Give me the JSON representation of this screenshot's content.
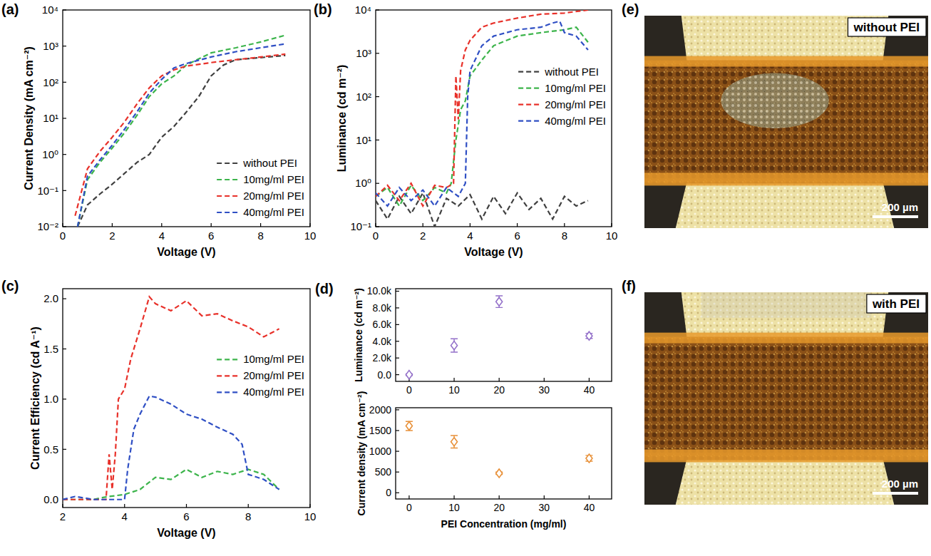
{
  "chart_data": [
    {
      "panel_label": "(a)",
      "type": "line",
      "x_label": "Voltage (V)",
      "y_label": "Current Density (mA cm⁻²)",
      "log": "y",
      "legend": "lower right",
      "xlim": [
        0,
        10
      ],
      "xticks": [
        0,
        2,
        4,
        6,
        8,
        10
      ],
      "ylim": [
        0.01,
        10000
      ],
      "yticks": [
        {
          "value": 0.01,
          "label": "10⁻²"
        },
        {
          "value": 0.1,
          "label": "10⁻¹"
        },
        {
          "value": 1,
          "label": "10⁰"
        },
        {
          "value": 10,
          "label": "10¹"
        },
        {
          "value": 100,
          "label": "10²"
        },
        {
          "value": 1000,
          "label": "10³"
        },
        {
          "value": 10000,
          "label": "10⁴"
        }
      ],
      "series": [
        {
          "name": "without PEI",
          "color": "#404040",
          "line_style": "dashed",
          "x": [
            0.6,
            1,
            1.5,
            2,
            2.5,
            3,
            3.5,
            4,
            4.5,
            5,
            5.5,
            6,
            6.5,
            7,
            8,
            9
          ],
          "values": [
            0.01,
            0.04,
            0.08,
            0.15,
            0.3,
            0.6,
            1,
            3,
            6,
            15,
            40,
            150,
            300,
            420,
            480,
            550
          ]
        },
        {
          "name": "10mg/ml PEI",
          "color": "#3cb44b",
          "line_style": "dashed",
          "x": [
            0.6,
            1,
            1.5,
            2,
            2.5,
            3,
            3.5,
            4,
            4.5,
            5,
            6,
            7,
            8,
            9
          ],
          "values": [
            0.01,
            0.2,
            0.6,
            1.5,
            4,
            12,
            40,
            90,
            150,
            300,
            650,
            900,
            1300,
            2000
          ]
        },
        {
          "name": "20mg/ml PEI",
          "color": "#e8312a",
          "line_style": "dashed",
          "x": [
            0.5,
            1,
            1.5,
            2,
            2.5,
            3,
            3.5,
            4,
            4.5,
            5,
            6,
            7,
            8,
            9
          ],
          "values": [
            0.02,
            0.4,
            1.2,
            3,
            8,
            25,
            70,
            150,
            220,
            280,
            350,
            420,
            500,
            600
          ]
        },
        {
          "name": "40mg/ml PEI",
          "color": "#2f4fc4",
          "line_style": "dashed",
          "x": [
            0.6,
            1,
            1.5,
            2,
            2.5,
            3,
            3.5,
            4,
            4.5,
            5,
            6,
            7,
            8,
            9
          ],
          "values": [
            0.01,
            0.25,
            0.7,
            1.8,
            5,
            15,
            50,
            120,
            250,
            330,
            500,
            700,
            900,
            1150
          ]
        }
      ]
    },
    {
      "panel_label": "(b)",
      "type": "line",
      "x_label": "Voltage (V)",
      "y_label": "Luminance (cd m⁻²)",
      "log": "y",
      "legend": "right",
      "xlim": [
        0,
        10
      ],
      "xticks": [
        0,
        2,
        4,
        6,
        8,
        10
      ],
      "ylim": [
        0.1,
        10000
      ],
      "yticks": [
        {
          "value": 0.1,
          "label": "10⁻¹"
        },
        {
          "value": 1,
          "label": "10⁰"
        },
        {
          "value": 10,
          "label": "10¹"
        },
        {
          "value": 100,
          "label": "10²"
        },
        {
          "value": 1000,
          "label": "10³"
        },
        {
          "value": 10000,
          "label": "10⁴"
        }
      ],
      "series": [
        {
          "name": "without PEI",
          "color": "#404040",
          "line_style": "dashed",
          "x": [
            0,
            0.5,
            1,
            1.5,
            2,
            2.5,
            3,
            3.5,
            4,
            4.5,
            5,
            5.5,
            6,
            6.5,
            7,
            7.5,
            8,
            8.5,
            9
          ],
          "values": [
            0.4,
            0.15,
            0.5,
            0.2,
            0.6,
            0.1,
            0.45,
            0.3,
            0.55,
            0.15,
            0.5,
            0.2,
            0.6,
            0.25,
            0.45,
            0.15,
            0.5,
            0.3,
            0.4
          ]
        },
        {
          "name": "10mg/ml PEI",
          "color": "#3cb44b",
          "line_style": "dashed",
          "x": [
            0,
            0.5,
            1,
            1.5,
            2,
            2.5,
            3,
            3.2,
            3.4,
            3.6,
            3.8,
            4,
            4.5,
            5,
            6,
            7,
            8,
            8.5,
            9
          ],
          "values": [
            0.5,
            0.8,
            0.3,
            0.9,
            0.4,
            0.8,
            0.6,
            1,
            10,
            50,
            80,
            300,
            700,
            1500,
            2500,
            3000,
            3500,
            4000,
            1800
          ]
        },
        {
          "name": "20mg/ml PEI",
          "color": "#e8312a",
          "line_style": "dashed",
          "x": [
            0,
            0.5,
            1,
            1.5,
            2,
            2.5,
            3,
            3.3,
            3.4,
            3.5,
            3.6,
            3.8,
            4,
            4.5,
            5,
            6,
            7,
            8,
            9
          ],
          "values": [
            0.5,
            0.9,
            0.4,
            1,
            0.3,
            0.9,
            0.8,
            1,
            300,
            30,
            400,
            1200,
            2000,
            4000,
            5000,
            6500,
            8000,
            8500,
            10000
          ]
        },
        {
          "name": "40mg/ml PEI",
          "color": "#2f4fc4",
          "line_style": "dashed",
          "x": [
            0,
            0.5,
            1,
            1.5,
            2,
            2.5,
            3,
            3.5,
            3.8,
            3.9,
            4,
            4.5,
            5,
            6,
            7,
            7.5,
            7.8,
            8,
            8.5,
            9
          ],
          "values": [
            0.6,
            0.3,
            0.8,
            0.4,
            0.7,
            0.3,
            0.8,
            0.5,
            1,
            100,
            400,
            1500,
            2500,
            3500,
            4000,
            5000,
            5500,
            3000,
            2500,
            1200
          ]
        }
      ]
    },
    {
      "panel_label": "(c)",
      "type": "line",
      "x_label": "Voltage (V)",
      "y_label": "Current Efficiency (cd A⁻¹)",
      "legend": "right",
      "xlim": [
        2,
        10
      ],
      "xticks": [
        2,
        4,
        6,
        8,
        10
      ],
      "ylim": [
        -0.08,
        2.1
      ],
      "yticks": [
        {
          "value": 0,
          "label": "0.0"
        },
        0.5,
        {
          "value": 1,
          "label": "1.0"
        },
        1.5,
        {
          "value": 2,
          "label": "2.0"
        }
      ],
      "series": [
        {
          "name": "10mg/ml PEI",
          "color": "#3cb44b",
          "line_style": "dashed",
          "x": [
            2,
            3,
            3.3,
            3.5,
            4,
            4.5,
            5,
            5.5,
            6,
            6.5,
            7,
            7.5,
            8,
            8.5,
            9
          ],
          "values": [
            0,
            0,
            0.02,
            0.03,
            0.05,
            0.1,
            0.22,
            0.2,
            0.3,
            0.22,
            0.28,
            0.25,
            0.3,
            0.25,
            0.1
          ]
        },
        {
          "name": "20mg/ml PEI",
          "color": "#e8312a",
          "line_style": "dashed",
          "x": [
            2,
            2.5,
            3,
            3.4,
            3.5,
            3.6,
            3.7,
            3.8,
            4,
            4.2,
            4.5,
            4.8,
            5,
            5.5,
            6,
            6.5,
            7,
            7.5,
            8,
            8.5,
            9
          ],
          "values": [
            0,
            0,
            0,
            0,
            0.45,
            0.1,
            0.45,
            1.0,
            1.1,
            1.4,
            1.7,
            2.02,
            1.95,
            1.88,
            1.98,
            1.83,
            1.85,
            1.78,
            1.72,
            1.62,
            1.7
          ]
        },
        {
          "name": "40mg/ml PEI",
          "color": "#2f4fc4",
          "line_style": "dashed",
          "x": [
            2,
            2.4,
            3,
            3.5,
            4,
            4.1,
            4.3,
            4.5,
            4.8,
            5,
            5.5,
            6,
            6.5,
            7,
            7.5,
            7.8,
            8,
            8.5,
            9
          ],
          "values": [
            0,
            0.03,
            0,
            0,
            0,
            0.3,
            0.7,
            0.85,
            1.03,
            1.02,
            0.95,
            0.85,
            0.8,
            0.72,
            0.65,
            0.55,
            0.25,
            0.2,
            0.1
          ]
        }
      ]
    },
    {
      "panel_label": "(d)",
      "type": "scatter",
      "y_label": "Luminance (cd m⁻²)",
      "xlim": [
        -3,
        45
      ],
      "xticks": [
        0,
        10,
        20,
        30,
        40
      ],
      "ylim": [
        -800,
        10300
      ],
      "yticks": [
        {
          "value": 0,
          "label": "0.0"
        },
        {
          "value": 2000,
          "label": "2.0k"
        },
        {
          "value": 4000,
          "label": "4.0k"
        },
        {
          "value": 6000,
          "label": "6.0k"
        },
        {
          "value": 8000,
          "label": "8.0k"
        },
        {
          "value": 10000,
          "label": "10.0k"
        }
      ],
      "x": [
        0,
        10,
        20,
        40
      ],
      "series": [
        {
          "color": "#9370c9",
          "marker": "diamond",
          "values": [
            0,
            3500,
            8750,
            4650
          ],
          "errors": [
            100,
            800,
            700,
            300
          ]
        }
      ]
    },
    {
      "type": "scatter",
      "x_label": "PEI Concentration (mg/ml)",
      "y_label": "Current density (mA cm⁻²)",
      "xlim": [
        -3,
        45
      ],
      "xticks": [
        0,
        10,
        20,
        30,
        40
      ],
      "ylim": [
        -150,
        2050
      ],
      "yticks": [
        0,
        500,
        1000,
        1500,
        2000
      ],
      "x": [
        0,
        10,
        20,
        40
      ],
      "series": [
        {
          "color": "#e8913a",
          "marker": "diamond",
          "values": [
            1610,
            1230,
            470,
            830
          ],
          "errors": [
            110,
            150,
            30,
            70
          ]
        }
      ]
    }
  ],
  "images": [
    {
      "panel_label": "(e)",
      "title": "without PEI",
      "scale_bar": "200 µm"
    },
    {
      "panel_label": "(f)",
      "title": "with PEI",
      "scale_bar": "200 µm"
    }
  ]
}
